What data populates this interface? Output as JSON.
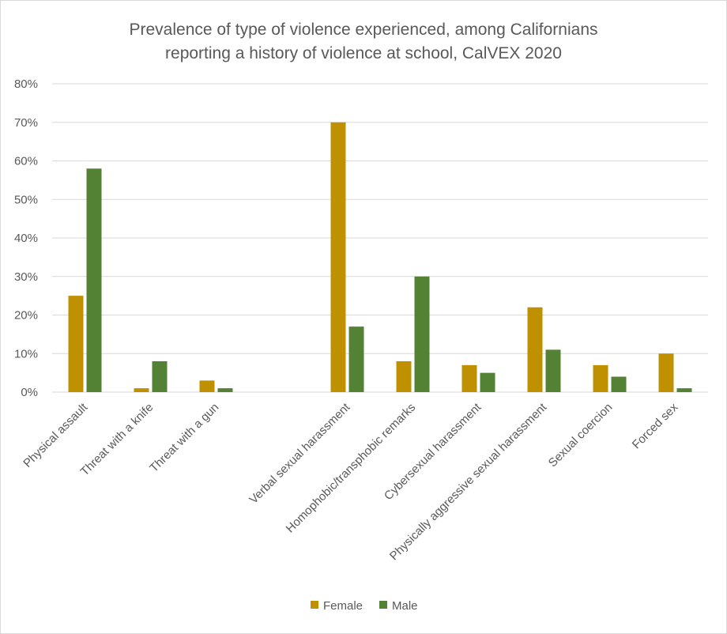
{
  "chart_data": {
    "type": "bar",
    "title": [
      "Prevalence of type of violence experienced, among Californians",
      "reporting a history of violence at school, CalVEX 2020"
    ],
    "xlabel": "",
    "ylabel": "",
    "ylim": [
      0,
      80
    ],
    "ytick_labels": [
      "0%",
      "10%",
      "20%",
      "30%",
      "40%",
      "50%",
      "60%",
      "70%",
      "80%"
    ],
    "grid": true,
    "legend_position": "bottom",
    "categories": [
      "Physical assault",
      "Threat with a knife",
      "Threat with a gun",
      "",
      "Verbal sexual harassment",
      "Homophobic/transphobic remarks",
      "Cybersexual harassment",
      "Physically aggressive sexual harassment",
      "Sexual coercion",
      "Forced sex"
    ],
    "series": [
      {
        "name": "Female",
        "color": "#bf9000",
        "values": [
          25,
          1,
          3,
          null,
          70,
          8,
          7,
          22,
          7,
          10
        ]
      },
      {
        "name": "Male",
        "color": "#548235",
        "values": [
          58,
          8,
          1,
          null,
          17,
          30,
          5,
          11,
          4,
          1
        ]
      }
    ]
  }
}
